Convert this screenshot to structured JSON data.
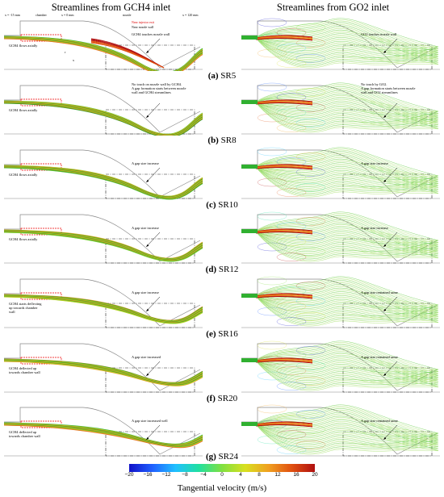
{
  "titles": {
    "left": "Streamlines from GCH4 inlet",
    "right": "Streamlines from GO2 inlet"
  },
  "header_labels": {
    "x_neg": "x = -15 mm",
    "chamber": "chamber",
    "x0": "x = 0 mm",
    "nozzle": "nozzle",
    "x_end": "x = 120 mm"
  },
  "legend": {
    "injector": "Near injector exit",
    "nozzle_wall": "Near nozzle wall"
  },
  "axis_glyphs": {
    "x": "x",
    "r": "r"
  },
  "rows": [
    {
      "id": "a",
      "caption_letter": "(a)",
      "caption": "SR5",
      "left_note": "GCH4 flows axially",
      "left_callout": "GCH4 touches nozzle wall",
      "right_callout": "GO2 touches nozzle wall"
    },
    {
      "id": "b",
      "caption_letter": "(b)",
      "caption": "SR8",
      "left_note": "GCH4 flows axially",
      "left_callout": "No touch on nozzle wall by GCH4.\nA gap formation starts between nozzle\nwall and GCH4 streamlines",
      "right_callout": "No touch by GO2.\nA gap formation starts between nozzle\nwall and GO2 streamlines"
    },
    {
      "id": "c",
      "caption_letter": "(c)",
      "caption": "SR10",
      "left_note": "GCH4 flows axially",
      "left_callout": "A gap size increase",
      "right_callout": "A gap size increase"
    },
    {
      "id": "d",
      "caption_letter": "(d)",
      "caption": "SR12",
      "left_note": "GCH4 flows axially",
      "left_callout": "A gap size increase",
      "right_callout": "A gap size increase"
    },
    {
      "id": "e",
      "caption_letter": "(e)",
      "caption": "SR16",
      "left_note": "GCH4 starts deflecting\nup towards chamber\nwall",
      "left_callout": "A gap size increase",
      "right_callout": "A gap size remained same"
    },
    {
      "id": "f",
      "caption_letter": "(f)",
      "caption": "SR20",
      "left_note": "GCH4 deflected up\ntowards chamber wall",
      "left_callout": "A gap size increased",
      "right_callout": "A gap size remained same"
    },
    {
      "id": "g",
      "caption_letter": "(g)",
      "caption": "SR24",
      "left_note": "GCH4 deflected up\ntowards chamber wall",
      "left_callout": "A gap size increased well",
      "right_callout": "A gap size remained same"
    }
  ],
  "colorbar": {
    "ticks": [
      "−20",
      "−16",
      "−12",
      "−8",
      "−4",
      "0",
      "4",
      "8",
      "12",
      "16",
      "20"
    ],
    "min": -20,
    "max": 20,
    "colors": [
      "#1010c8",
      "#2060ff",
      "#20c0ff",
      "#20e0a0",
      "#80e040",
      "#d8e020",
      "#f0a020",
      "#e05010",
      "#b01010"
    ],
    "label": "Tangential velocity (m/s)"
  }
}
